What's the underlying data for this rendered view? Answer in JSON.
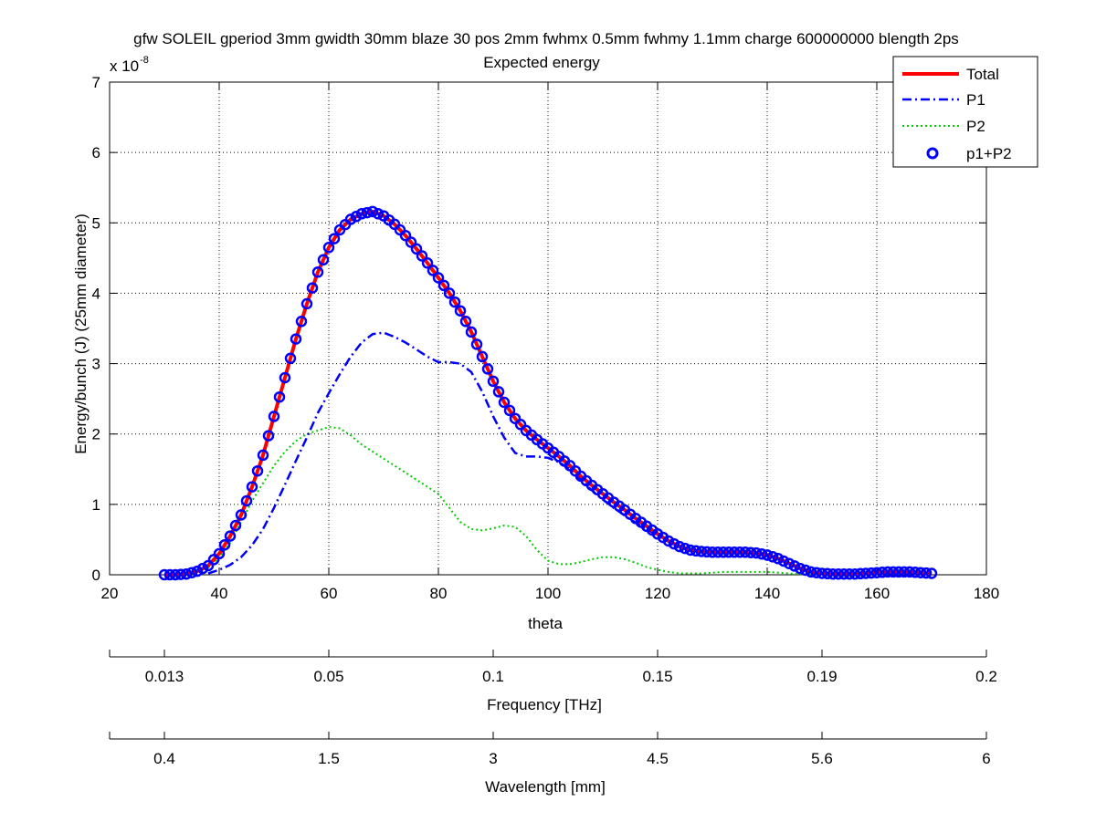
{
  "chart_data": [
    {
      "type": "line",
      "title": "gfw SOLEIL gperiod 3mm gwidth 30mm blaze 30 pos 2mm fwhmx 0.5mm fwhmy 1.1mm charge 600000000 blength 2ps",
      "subtitle": "Expected energy",
      "xlabel": "theta",
      "ylabel": "Energy/bunch (J) (25mm diameter)",
      "y_exponent_label": "x 10",
      "y_exponent": "-8",
      "xlim": [
        20,
        180
      ],
      "ylim": [
        0,
        7
      ],
      "x_ticks": [
        "20",
        "40",
        "60",
        "80",
        "100",
        "120",
        "140",
        "160",
        "180"
      ],
      "y_ticks": [
        "0",
        "1",
        "2",
        "3",
        "4",
        "5",
        "6",
        "7"
      ],
      "grid": true,
      "legend_position": "top-right",
      "series": [
        {
          "name": "Total",
          "color": "#ff0000",
          "style": "solid",
          "x": [
            30,
            32,
            34,
            36,
            38,
            40,
            42,
            44,
            46,
            48,
            50,
            52,
            54,
            56,
            58,
            60,
            62,
            64,
            66,
            68,
            70,
            72,
            74,
            76,
            78,
            80,
            82,
            84,
            86,
            88,
            90,
            92,
            94,
            96,
            98,
            100,
            102,
            104,
            106,
            108,
            110,
            112,
            114,
            116,
            118,
            120,
            122,
            124,
            126,
            128,
            130,
            132,
            134,
            136,
            138,
            140,
            142,
            144,
            146,
            148,
            150,
            152,
            154,
            156,
            158,
            160,
            162,
            164,
            166,
            168,
            170
          ],
          "y": [
            0.0,
            0.0,
            0.01,
            0.05,
            0.13,
            0.3,
            0.55,
            0.85,
            1.25,
            1.7,
            2.25,
            2.8,
            3.35,
            3.85,
            4.3,
            4.65,
            4.9,
            5.05,
            5.13,
            5.16,
            5.1,
            4.98,
            4.82,
            4.63,
            4.43,
            4.22,
            4.0,
            3.75,
            3.45,
            3.1,
            2.75,
            2.45,
            2.22,
            2.05,
            1.92,
            1.8,
            1.68,
            1.55,
            1.4,
            1.27,
            1.15,
            1.03,
            0.92,
            0.8,
            0.69,
            0.58,
            0.48,
            0.4,
            0.35,
            0.33,
            0.32,
            0.32,
            0.32,
            0.32,
            0.31,
            0.28,
            0.23,
            0.16,
            0.09,
            0.04,
            0.02,
            0.01,
            0.01,
            0.01,
            0.02,
            0.03,
            0.04,
            0.04,
            0.04,
            0.03,
            0.02
          ]
        },
        {
          "name": "P1",
          "color": "#0000ff",
          "style": "dashdot",
          "x": [
            38,
            40,
            42,
            44,
            46,
            48,
            50,
            52,
            54,
            56,
            58,
            60,
            62,
            64,
            66,
            68,
            70,
            72,
            74,
            76,
            78,
            80,
            82,
            84,
            86,
            88,
            90,
            92,
            94,
            96,
            98,
            100,
            102,
            104,
            106,
            108,
            110,
            112,
            114,
            116,
            118,
            120,
            122,
            124,
            126,
            128,
            130,
            132,
            134,
            136,
            138,
            140,
            142,
            144,
            146,
            148,
            150
          ],
          "y": [
            0.02,
            0.07,
            0.14,
            0.25,
            0.42,
            0.65,
            0.95,
            1.28,
            1.62,
            1.95,
            2.3,
            2.58,
            2.85,
            3.1,
            3.3,
            3.42,
            3.44,
            3.38,
            3.3,
            3.2,
            3.1,
            3.02,
            3.02,
            3.0,
            2.88,
            2.6,
            2.25,
            1.95,
            1.73,
            1.68,
            1.68,
            1.66,
            1.6,
            1.5,
            1.35,
            1.2,
            1.07,
            0.95,
            0.84,
            0.74,
            0.65,
            0.56,
            0.48,
            0.41,
            0.36,
            0.33,
            0.32,
            0.32,
            0.32,
            0.32,
            0.31,
            0.28,
            0.23,
            0.16,
            0.09,
            0.04,
            0.02
          ]
        },
        {
          "name": "P2",
          "color": "#00cc00",
          "style": "dotted",
          "x": [
            38,
            40,
            42,
            44,
            46,
            48,
            50,
            52,
            54,
            56,
            58,
            60,
            62,
            64,
            66,
            68,
            70,
            72,
            74,
            76,
            78,
            80,
            82,
            84,
            86,
            88,
            90,
            92,
            94,
            96,
            98,
            100,
            102,
            104,
            106,
            108,
            110,
            112,
            114,
            116,
            118,
            120,
            122,
            124,
            126,
            128,
            130,
            132,
            134,
            136,
            138,
            140,
            142,
            144,
            146,
            148,
            150
          ],
          "y": [
            0.1,
            0.25,
            0.45,
            0.75,
            1.05,
            1.3,
            1.55,
            1.75,
            1.9,
            2.0,
            2.05,
            2.1,
            2.08,
            1.98,
            1.85,
            1.75,
            1.65,
            1.55,
            1.45,
            1.35,
            1.25,
            1.15,
            0.95,
            0.75,
            0.65,
            0.63,
            0.66,
            0.7,
            0.68,
            0.55,
            0.35,
            0.2,
            0.15,
            0.15,
            0.18,
            0.22,
            0.25,
            0.25,
            0.22,
            0.17,
            0.11,
            0.07,
            0.04,
            0.02,
            0.02,
            0.02,
            0.03,
            0.04,
            0.04,
            0.04,
            0.04,
            0.04,
            0.03,
            0.02,
            0.01,
            0.0,
            0.0
          ]
        },
        {
          "name": "p1+P2",
          "color": "#0000ff",
          "style": "circle",
          "x_range": [
            30,
            170
          ],
          "x_step": 1,
          "same_as": "Total"
        }
      ]
    },
    {
      "type": "axis",
      "xlabel": "Frequency [THz]",
      "tick_labels": [
        "0.013",
        "0.05",
        "0.1",
        "0.15",
        "0.19",
        "0.2"
      ]
    },
    {
      "type": "axis",
      "xlabel": "Wavelength [mm]",
      "tick_labels": [
        "0.4",
        "1.5",
        "3",
        "4.5",
        "5.6",
        "6"
      ]
    }
  ]
}
